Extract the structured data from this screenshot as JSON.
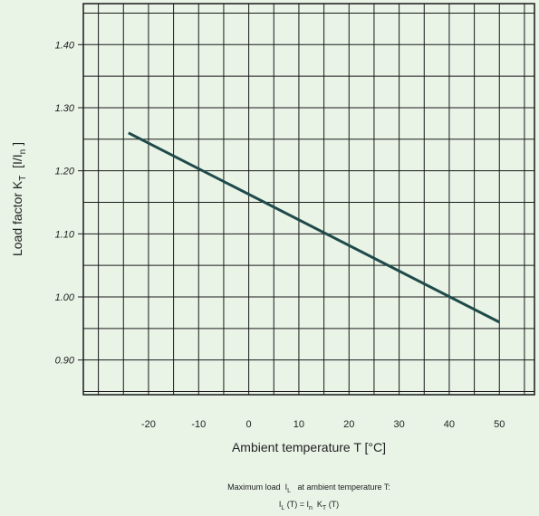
{
  "chart_data": {
    "type": "line",
    "xlabel": "Ambient temperature T [°C]",
    "ylabel": {
      "prefix": "Load factor K",
      "prefix_sub": "T",
      "middle": "  [I/I",
      "middle_sub": "n",
      "suffix": " ]"
    },
    "xlim": [
      -33,
      57
    ],
    "ylim": [
      0.845,
      1.465
    ],
    "x_ticks": [
      -20,
      -10,
      0,
      10,
      20,
      30,
      40,
      50
    ],
    "x_tick_labels": [
      "-20",
      "-10",
      "0",
      "10",
      "20",
      "30",
      "40",
      "50"
    ],
    "y_ticks": [
      0.9,
      1.0,
      1.1,
      1.2,
      1.3,
      1.4
    ],
    "y_tick_labels": [
      "0.90",
      "1.00",
      "1.10",
      "1.20",
      "1.30",
      "1.40"
    ],
    "grid": true,
    "series": [
      {
        "x": [
          -24,
          50
        ],
        "y": [
          1.26,
          0.96
        ]
      }
    ],
    "colors": {
      "line": "#1f4a4a",
      "grid": "#1a1a1a",
      "background": "#e9f3e6"
    }
  },
  "footnote": {
    "line1_prefix": "Maximum load  I",
    "line1_sub": "L",
    "line1_suffix": "   at ambient temperature T:",
    "formula": {
      "a": "I",
      "a_sub": "L",
      "b": " (T) = I",
      "b_sub": "n",
      "c": "  K",
      "c_sub": "T",
      "d": " (T)"
    }
  }
}
